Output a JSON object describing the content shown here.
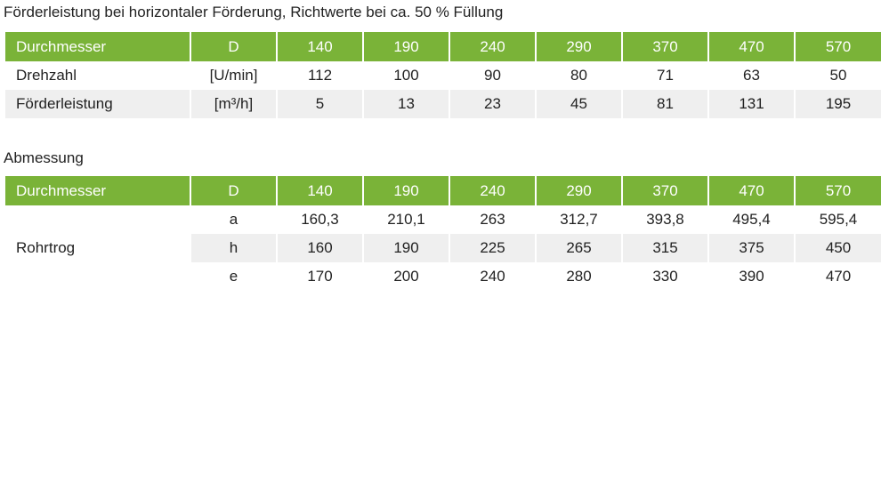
{
  "table1": {
    "caption": "Förderleistung bei horizontaler Förderung, Richtwerte bei ca. 50 % Füllung",
    "header": [
      "Durchmesser",
      "D",
      "140",
      "190",
      "240",
      "290",
      "370",
      "470",
      "570"
    ],
    "rows": [
      {
        "label": "Drehzahl",
        "unit": "[U/min]",
        "values": [
          "112",
          "100",
          "90",
          "80",
          "71",
          "63",
          "50"
        ]
      },
      {
        "label": "Förderleistung",
        "unit": "[m³/h]",
        "values": [
          "5",
          "13",
          "23",
          "45",
          "81",
          "131",
          "195"
        ]
      }
    ]
  },
  "table2": {
    "caption": "Abmessung",
    "header": [
      "Durchmesser",
      "D",
      "140",
      "190",
      "240",
      "290",
      "370",
      "470",
      "570"
    ],
    "group_label": "Rohrtrog",
    "rows": [
      {
        "param": "a",
        "values": [
          "160,3",
          "210,1",
          "263",
          "312,7",
          "393,8",
          "495,4",
          "595,4"
        ]
      },
      {
        "param": "h",
        "values": [
          "160",
          "190",
          "225",
          "265",
          "315",
          "375",
          "450"
        ]
      },
      {
        "param": "e",
        "values": [
          "170",
          "200",
          "240",
          "280",
          "330",
          "390",
          "470"
        ]
      }
    ]
  },
  "colors": {
    "header_green": "#7ab338",
    "row_gray": "#efefef"
  }
}
